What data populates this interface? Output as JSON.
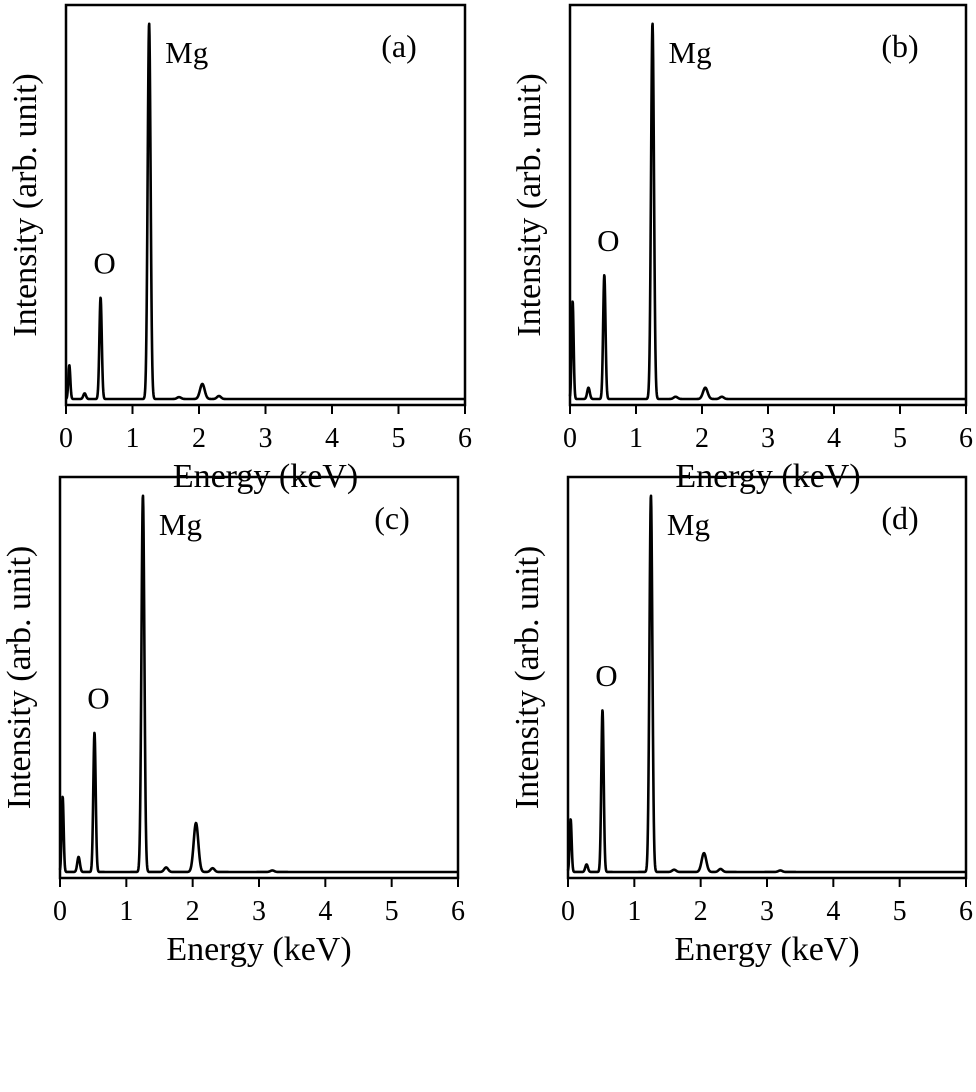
{
  "chart_data": [
    {
      "type": "line",
      "panel_label": "(a)",
      "xlabel": "Energy (keV)",
      "ylabel": "Intensity (arb. unit)",
      "xlim": [
        0,
        6
      ],
      "ylim": [
        0,
        100
      ],
      "xticks": [
        "0",
        "1",
        "2",
        "3",
        "4",
        "5",
        "6"
      ],
      "yticks_shown": false,
      "grid": false,
      "annotations": [
        {
          "text": "O",
          "x": 0.52
        },
        {
          "text": "Mg",
          "x": 1.25
        }
      ],
      "series": [
        {
          "peaks": [
            {
              "x": 0.05,
              "y": 9,
              "width": 0.015
            },
            {
              "x": 0.28,
              "y": 1.5,
              "width": 0.02
            },
            {
              "x": 0.52,
              "y": 27,
              "width": 0.018
            },
            {
              "x": 1.25,
              "y": 100,
              "width": 0.022
            },
            {
              "x": 1.7,
              "y": 0.5,
              "width": 0.03
            },
            {
              "x": 2.05,
              "y": 4,
              "width": 0.035
            },
            {
              "x": 2.3,
              "y": 0.8,
              "width": 0.03
            }
          ]
        }
      ]
    },
    {
      "type": "line",
      "panel_label": "(b)",
      "xlabel": "Energy (keV)",
      "ylabel": "Intensity (arb. unit)",
      "xlim": [
        0,
        6
      ],
      "ylim": [
        0,
        100
      ],
      "xticks": [
        "0",
        "1",
        "2",
        "3",
        "4",
        "5",
        "6"
      ],
      "yticks_shown": false,
      "grid": false,
      "annotations": [
        {
          "text": "O",
          "x": 0.52
        },
        {
          "text": "Mg",
          "x": 1.25
        }
      ],
      "series": [
        {
          "peaks": [
            {
              "x": 0.04,
              "y": 26,
              "width": 0.015
            },
            {
              "x": 0.28,
              "y": 3,
              "width": 0.02
            },
            {
              "x": 0.52,
              "y": 33,
              "width": 0.018
            },
            {
              "x": 1.25,
              "y": 100,
              "width": 0.022
            },
            {
              "x": 1.6,
              "y": 0.6,
              "width": 0.03
            },
            {
              "x": 2.05,
              "y": 3,
              "width": 0.035
            },
            {
              "x": 2.3,
              "y": 0.6,
              "width": 0.03
            }
          ]
        }
      ]
    },
    {
      "type": "line",
      "panel_label": "(c)",
      "xlabel": "Energy (keV)",
      "ylabel": "Intensity (arb. unit)",
      "xlim": [
        0,
        6
      ],
      "ylim": [
        0,
        100
      ],
      "xticks": [
        "0",
        "1",
        "2",
        "3",
        "4",
        "5",
        "6"
      ],
      "yticks_shown": false,
      "grid": false,
      "annotations": [
        {
          "text": "O",
          "x": 0.52
        },
        {
          "text": "Mg",
          "x": 1.25
        }
      ],
      "series": [
        {
          "peaks": [
            {
              "x": 0.04,
              "y": 20,
              "width": 0.015
            },
            {
              "x": 0.28,
              "y": 4,
              "width": 0.02
            },
            {
              "x": 0.52,
              "y": 37,
              "width": 0.018
            },
            {
              "x": 1.25,
              "y": 100,
              "width": 0.022
            },
            {
              "x": 1.6,
              "y": 1.2,
              "width": 0.03
            },
            {
              "x": 2.05,
              "y": 13,
              "width": 0.035
            },
            {
              "x": 2.3,
              "y": 1,
              "width": 0.03
            },
            {
              "x": 3.2,
              "y": 0.4,
              "width": 0.03
            }
          ]
        }
      ]
    },
    {
      "type": "line",
      "panel_label": "(d)",
      "xlabel": "Energy (keV)",
      "ylabel": "Intensity (arb. unit)",
      "xlim": [
        0,
        6
      ],
      "ylim": [
        0,
        100
      ],
      "xticks": [
        "0",
        "1",
        "2",
        "3",
        "4",
        "5",
        "6"
      ],
      "yticks_shown": false,
      "grid": false,
      "annotations": [
        {
          "text": "O",
          "x": 0.52
        },
        {
          "text": "Mg",
          "x": 1.25
        }
      ],
      "series": [
        {
          "peaks": [
            {
              "x": 0.04,
              "y": 14,
              "width": 0.015
            },
            {
              "x": 0.28,
              "y": 2,
              "width": 0.02
            },
            {
              "x": 0.52,
              "y": 43,
              "width": 0.018
            },
            {
              "x": 1.25,
              "y": 100,
              "width": 0.022
            },
            {
              "x": 1.6,
              "y": 0.6,
              "width": 0.03
            },
            {
              "x": 2.05,
              "y": 5,
              "width": 0.035
            },
            {
              "x": 2.3,
              "y": 0.8,
              "width": 0.03
            },
            {
              "x": 3.2,
              "y": 0.4,
              "width": 0.03
            }
          ]
        }
      ]
    }
  ]
}
